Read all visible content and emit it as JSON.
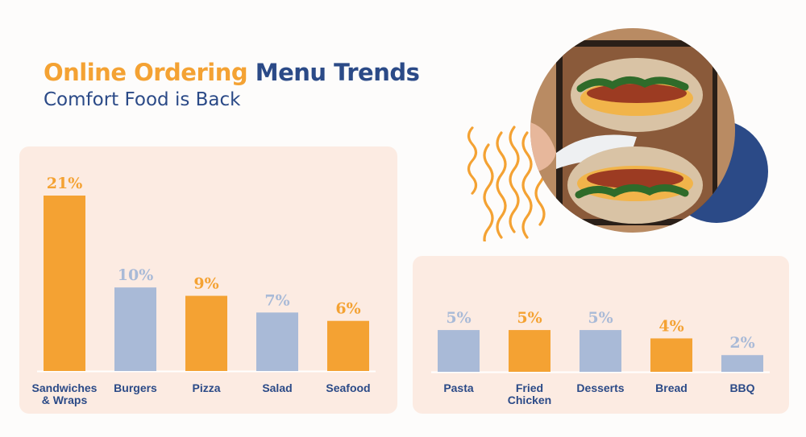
{
  "header": {
    "title_part1": "Online Ordering",
    "title_part2": "Menu Trends",
    "subtitle": "Comfort Food is Back"
  },
  "colors": {
    "orange": "#f4a233",
    "blue": "#a9bad7",
    "navy": "#2b4a87",
    "panel": "#fcebe2"
  },
  "chart_data": [
    {
      "type": "bar",
      "categories": [
        [
          "Sandwiches",
          "& Wraps"
        ],
        [
          "Burgers"
        ],
        [
          "Pizza"
        ],
        [
          "Salad"
        ],
        [
          "Seafood"
        ]
      ],
      "values": [
        21,
        10,
        9,
        7,
        6
      ],
      "labels": [
        "21%",
        "10%",
        "9%",
        "7%",
        "6%"
      ],
      "bar_colors": [
        "#f4a233",
        "#a9bad7",
        "#f4a233",
        "#a9bad7",
        "#f4a233"
      ],
      "label_colors": [
        "#f4a233",
        "#a9bad7",
        "#f4a233",
        "#a9bad7",
        "#f4a233"
      ],
      "ylim": [
        0,
        21
      ],
      "grid": false
    },
    {
      "type": "bar",
      "categories": [
        [
          "Pasta"
        ],
        [
          "Fried",
          "Chicken"
        ],
        [
          "Desserts"
        ],
        [
          "Bread"
        ],
        [
          "BBQ"
        ]
      ],
      "values": [
        5,
        5,
        5,
        4,
        2
      ],
      "labels": [
        "5%",
        "5%",
        "5%",
        "4%",
        "2%"
      ],
      "bar_colors": [
        "#a9bad7",
        "#f4a233",
        "#a9bad7",
        "#f4a233",
        "#a9bad7"
      ],
      "label_colors": [
        "#a9bad7",
        "#f4a233",
        "#a9bad7",
        "#f4a233",
        "#a9bad7"
      ],
      "ylim": [
        0,
        21
      ],
      "grid": false
    }
  ],
  "image": {
    "subject": "sandwich-photo",
    "decor": [
      "wavy-lines",
      "navy-circle"
    ]
  }
}
